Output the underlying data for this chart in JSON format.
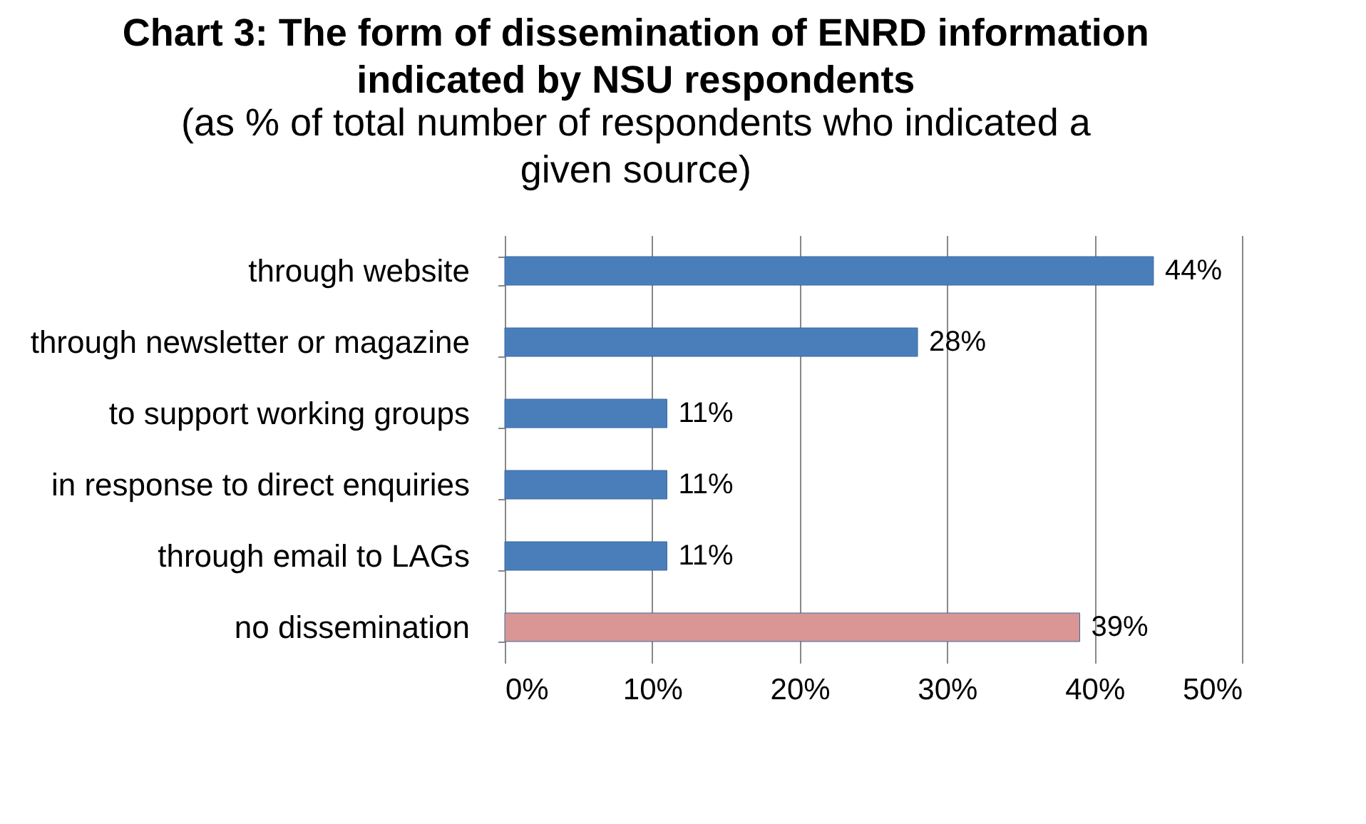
{
  "chart_data": {
    "type": "bar",
    "orientation": "horizontal",
    "title": "Chart 3: The form of dissemination of ENRD information indicated by NSU respondents",
    "subtitle": "(as % of total number of respondents who indicated a given source)",
    "categories": [
      "through website",
      "through newsletter or magazine",
      "to support working groups",
      "in response to direct enquiries",
      "through email to LAGs",
      "no dissemination"
    ],
    "values": [
      44,
      28,
      11,
      11,
      11,
      39
    ],
    "colors": [
      "#4a7ebb",
      "#4a7ebb",
      "#4a7ebb",
      "#4a7ebb",
      "#4a7ebb",
      "#d99694"
    ],
    "value_labels": [
      "44%",
      "28%",
      "11%",
      "11%",
      "11%",
      "39%"
    ],
    "xlim": [
      0,
      50
    ],
    "xticks": [
      {
        "value": 0,
        "label": "0%"
      },
      {
        "value": 10,
        "label": "10%"
      },
      {
        "value": 20,
        "label": "20%"
      },
      {
        "value": 30,
        "label": "30%"
      },
      {
        "value": 40,
        "label": "40%"
      },
      {
        "value": 50,
        "label": "50%"
      }
    ],
    "grid": "x"
  }
}
